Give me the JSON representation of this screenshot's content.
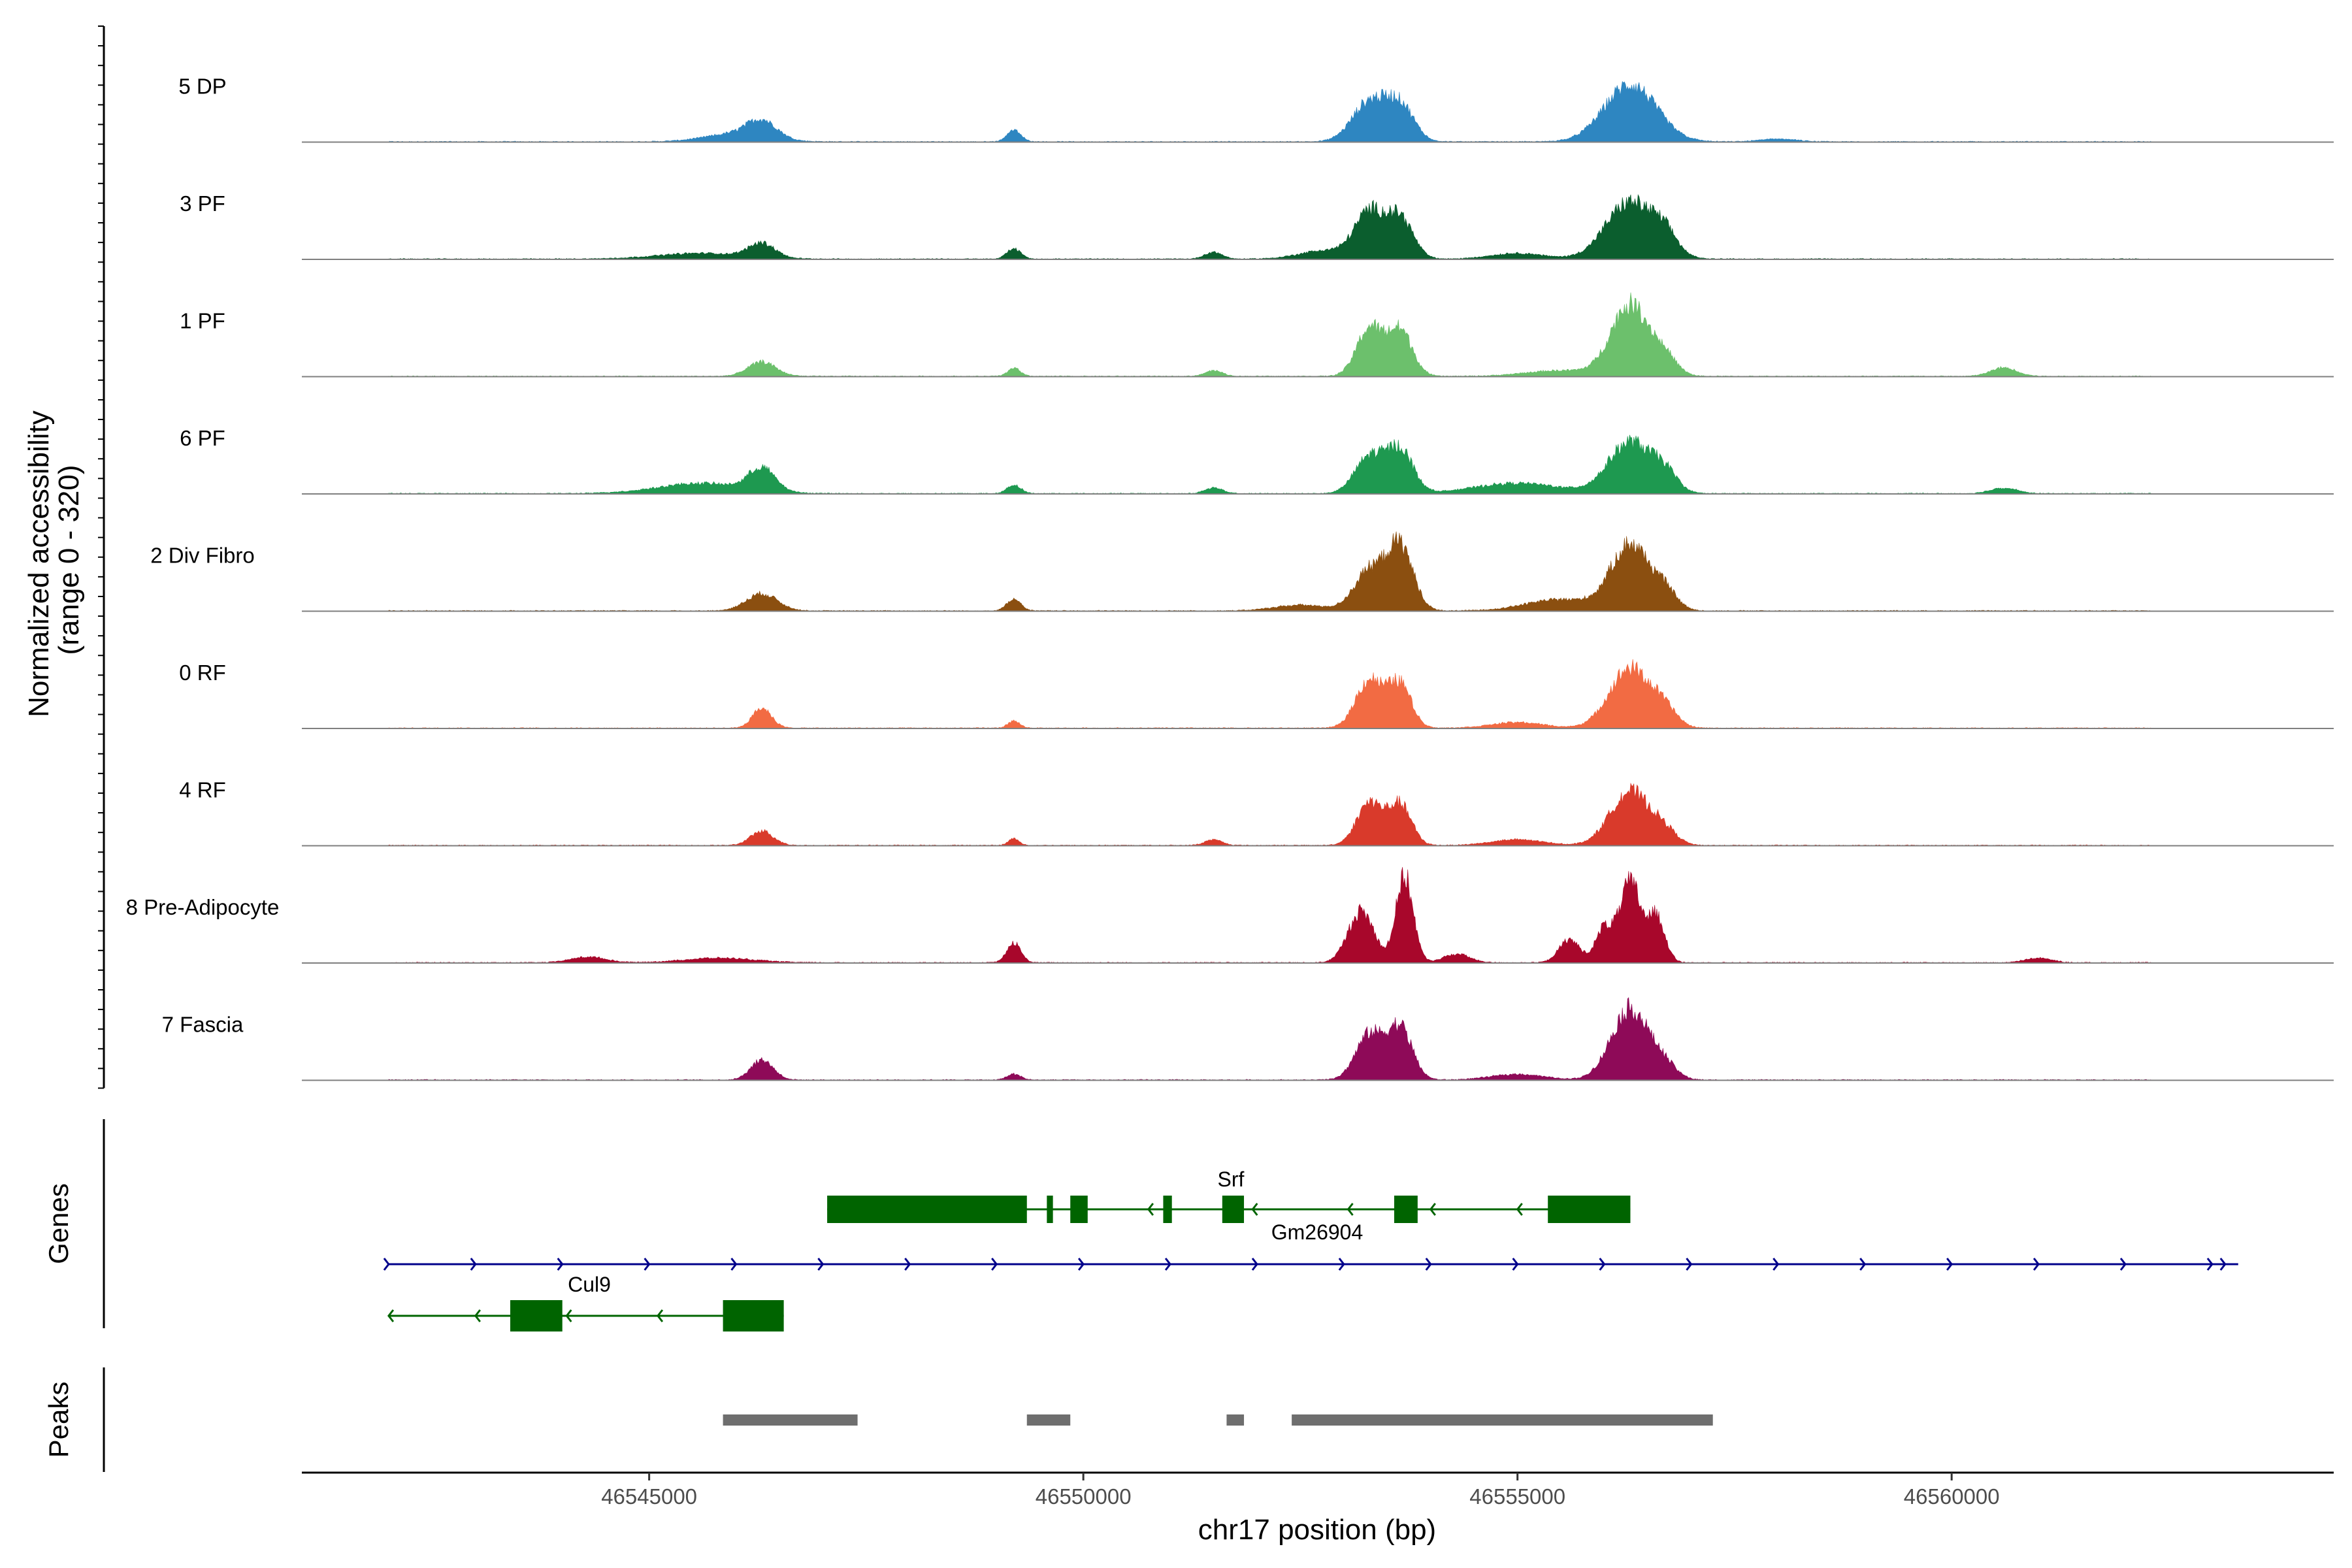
{
  "chart_data": {
    "type": "area",
    "title": "",
    "chromosome": "chr17",
    "xlabel": "chr17 position (bp)",
    "ylabel": "Normalized accessibility\n(range 0 - 320)",
    "ylabel_lines": [
      "Normalized accessibility",
      "(range 0 - 320)"
    ],
    "ylim": [
      0,
      320
    ],
    "xlim": [
      46541000,
      46564400
    ],
    "x_ticks": [
      46545000,
      46550000,
      46555000,
      46560000
    ],
    "x_tick_labels": [
      "46545000",
      "46550000",
      "46555000",
      "46560000"
    ],
    "baseline_start": 46542000,
    "baseline_end": 46562300,
    "series": [
      {
        "name": "5 DP",
        "color": "#2E86C1",
        "peaks": [
          [
            46546000,
            14,
            350
          ],
          [
            46546300,
            30,
            170
          ],
          [
            46549200,
            20,
            80
          ],
          [
            46553300,
            70,
            200
          ],
          [
            46553650,
            60,
            160
          ],
          [
            46556300,
            100,
            300
          ],
          [
            46558000,
            5,
            200
          ]
        ]
      },
      {
        "name": "3 PF",
        "color": "#0B5E2E",
        "peaks": [
          [
            46545600,
            10,
            500
          ],
          [
            46546300,
            25,
            150
          ],
          [
            46549200,
            18,
            80
          ],
          [
            46551500,
            12,
            100
          ],
          [
            46552800,
            15,
            300
          ],
          [
            46553300,
            80,
            170
          ],
          [
            46553650,
            70,
            150
          ],
          [
            46555000,
            10,
            300
          ],
          [
            46556300,
            100,
            280
          ],
          [
            46556700,
            30,
            140
          ]
        ]
      },
      {
        "name": "1 PF",
        "color": "#6CC06C",
        "peaks": [
          [
            46546300,
            25,
            160
          ],
          [
            46549200,
            15,
            70
          ],
          [
            46551500,
            10,
            100
          ],
          [
            46553300,
            85,
            150
          ],
          [
            46553650,
            80,
            140
          ],
          [
            46555500,
            10,
            400
          ],
          [
            46556300,
            125,
            220
          ],
          [
            46556700,
            28,
            140
          ],
          [
            46560600,
            15,
            150
          ]
        ]
      },
      {
        "name": "6 PF",
        "color": "#1E9950",
        "peaks": [
          [
            46545600,
            18,
            500
          ],
          [
            46546300,
            40,
            150
          ],
          [
            46549200,
            15,
            80
          ],
          [
            46551500,
            10,
            100
          ],
          [
            46553300,
            65,
            170
          ],
          [
            46553650,
            75,
            150
          ],
          [
            46555000,
            18,
            500
          ],
          [
            46556300,
            90,
            250
          ],
          [
            46556700,
            30,
            140
          ],
          [
            46560600,
            10,
            150
          ]
        ]
      },
      {
        "name": "2 Div Fibro",
        "color": "#8B4F10",
        "peaks": [
          [
            46546300,
            30,
            180
          ],
          [
            46549200,
            20,
            80
          ],
          [
            46552500,
            10,
            300
          ],
          [
            46553300,
            70,
            180
          ],
          [
            46553650,
            110,
            150
          ],
          [
            46555500,
            20,
            400
          ],
          [
            46556300,
            115,
            220
          ],
          [
            46556700,
            30,
            140
          ]
        ]
      },
      {
        "name": "0 RF",
        "color": "#F26B43",
        "peaks": [
          [
            46546300,
            35,
            110
          ],
          [
            46549200,
            12,
            70
          ],
          [
            46553300,
            85,
            160
          ],
          [
            46553650,
            75,
            130
          ],
          [
            46555000,
            10,
            300
          ],
          [
            46556300,
            105,
            240
          ],
          [
            46556700,
            25,
            140
          ]
        ]
      },
      {
        "name": "4 RF",
        "color": "#D93A2B",
        "peaks": [
          [
            46546300,
            25,
            130
          ],
          [
            46549200,
            12,
            60
          ],
          [
            46551500,
            10,
            100
          ],
          [
            46553300,
            75,
            150
          ],
          [
            46553650,
            70,
            130
          ],
          [
            46555000,
            10,
            300
          ],
          [
            46556300,
            95,
            230
          ],
          [
            46556700,
            20,
            140
          ]
        ]
      },
      {
        "name": "8 Pre-Adipocyte",
        "color": "#A8072B",
        "peaks": [
          [
            46544300,
            10,
            200
          ],
          [
            46545800,
            8,
            400
          ],
          [
            46549200,
            35,
            80
          ],
          [
            46553200,
            90,
            150
          ],
          [
            46553700,
            150,
            100
          ],
          [
            46554300,
            15,
            150
          ],
          [
            46555600,
            40,
            120
          ],
          [
            46556000,
            60,
            100
          ],
          [
            46556300,
            140,
            120
          ],
          [
            46556600,
            80,
            100
          ],
          [
            46561000,
            8,
            150
          ]
        ]
      },
      {
        "name": "7 Fascia",
        "color": "#8E0A58",
        "peaks": [
          [
            46546300,
            35,
            130
          ],
          [
            46549200,
            10,
            80
          ],
          [
            46553300,
            80,
            160
          ],
          [
            46553650,
            90,
            140
          ],
          [
            46555000,
            10,
            300
          ],
          [
            46556300,
            125,
            220
          ],
          [
            46556700,
            20,
            140
          ]
        ]
      }
    ],
    "genes": {
      "panel_label": "Genes",
      "labels": {
        "srf": "Srf",
        "gm26904": "Gm26904",
        "cul9": "Cul9"
      },
      "srf": {
        "start": 46547050,
        "end": 46556300,
        "strand": "-",
        "exons": [
          [
            46547050,
            46549350
          ],
          [
            46549580,
            46549650
          ],
          [
            46549850,
            46550050
          ],
          [
            46550920,
            46551020
          ],
          [
            46551600,
            46551850
          ],
          [
            46553580,
            46553850
          ],
          [
            46555350,
            46556300
          ]
        ]
      },
      "gm26904": {
        "start": 46542000,
        "end": 46563300,
        "strand": "+"
      },
      "cul9": {
        "start": 46542000,
        "end": 46546550,
        "strand": "-",
        "exons": [
          [
            46543400,
            46544000
          ],
          [
            46545850,
            46546550
          ]
        ]
      }
    },
    "peaks_panel": {
      "panel_label": "Peaks",
      "regions": [
        [
          46545850,
          46547400
        ],
        [
          46549350,
          46549850
        ],
        [
          46551650,
          46551850
        ],
        [
          46552400,
          46557250
        ]
      ]
    }
  }
}
